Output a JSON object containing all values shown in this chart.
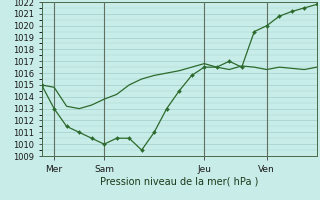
{
  "bg_color": "#c8ece8",
  "grid_color": "#a8d4d0",
  "line_color": "#2d6a2d",
  "vline_color": "#607060",
  "line1_x": [
    0,
    1,
    2,
    3,
    4,
    5,
    6,
    7,
    8,
    9,
    10,
    11,
    12,
    13,
    14,
    15,
    16,
    17,
    18,
    19,
    20,
    21,
    22
  ],
  "line1_y": [
    1015.0,
    1014.8,
    1013.2,
    1013.0,
    1013.3,
    1013.8,
    1014.2,
    1015.0,
    1015.5,
    1015.8,
    1016.0,
    1016.2,
    1016.5,
    1016.8,
    1016.5,
    1016.3,
    1016.6,
    1016.5,
    1016.3,
    1016.5,
    1016.4,
    1016.3,
    1016.5
  ],
  "line2_x": [
    0,
    1,
    2,
    3,
    4,
    5,
    6,
    7,
    8,
    9,
    10,
    11,
    12,
    13,
    14,
    15,
    16,
    17,
    18,
    19,
    20,
    21,
    22
  ],
  "line2_y": [
    1015.0,
    1013.0,
    1011.5,
    1011.0,
    1010.5,
    1010.0,
    1010.5,
    1010.5,
    1009.5,
    1011.0,
    1013.0,
    1014.5,
    1015.8,
    1016.5,
    1016.5,
    1017.0,
    1016.5,
    1019.5,
    1020.0,
    1020.8,
    1021.2,
    1021.5,
    1021.8
  ],
  "xtick_positions": [
    1,
    5,
    13,
    18
  ],
  "xtick_labels": [
    "Mer",
    "Sam",
    "Jeu",
    "Ven"
  ],
  "vline_positions": [
    1,
    5,
    13,
    18
  ],
  "ylim": [
    1009,
    1022
  ],
  "yticks": [
    1009,
    1010,
    1011,
    1012,
    1013,
    1014,
    1015,
    1016,
    1017,
    1018,
    1019,
    1020,
    1021,
    1022
  ],
  "xlabel": "Pression niveau de la mer( hPa )",
  "marker": "D",
  "markersize": 2.0
}
